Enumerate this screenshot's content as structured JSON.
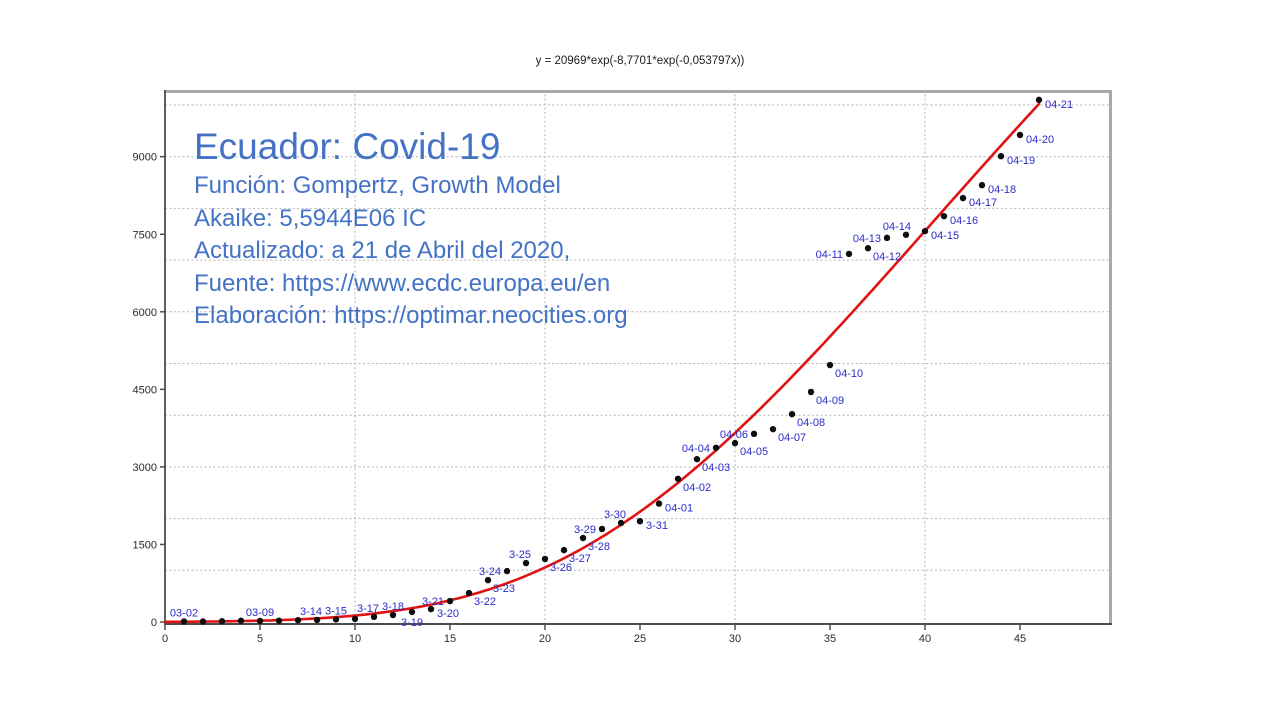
{
  "formula_title": "y = 20969*exp(-8,7701*exp(-0,053797x))",
  "annotation": {
    "title": "Ecuador: Covid-19",
    "lines": [
      "Función: Gompertz, Growth Model",
      "Akaike: 5,5944E06 IC",
      "Actualizado: a 21 de Abril del 2020,",
      "Fuente: https://www.ecdc.europa.eu/en",
      "Elaboración: https://optimar.neocities.org"
    ]
  },
  "colors": {
    "annotation_blue": "#4472C4",
    "point_label_blue": "#2B2BC8",
    "curve_red": "#E11212",
    "point_black": "#0d0d0d",
    "grid_gray": "#b4b4b4",
    "axis_dark": "#4d4d4d",
    "frame_gray": "#a8a8a8",
    "tick_text": "#2b2b2b"
  },
  "chart_data": {
    "type": "scatter",
    "title": "y = 20969*exp(-8,7701*exp(-0,053797x))",
    "xlabel": "",
    "ylabel": "",
    "xlim": [
      0,
      49.7
    ],
    "ylim": [
      0,
      10290
    ],
    "x_axis": {
      "ticks": [
        0,
        5,
        10,
        15,
        20,
        25,
        30,
        35,
        40,
        45
      ],
      "gridlines": [
        10,
        20,
        30,
        40
      ]
    },
    "y_axis": {
      "ticks": [
        0,
        1500,
        3000,
        4500,
        6000,
        7500,
        9000
      ],
      "gridlines": [
        1000,
        2000,
        3000,
        4000,
        5000,
        6000,
        7000,
        8000,
        9000,
        10000
      ]
    },
    "grid": "dashed",
    "legend": "none",
    "model_curve": {
      "name": "gompertz-fit",
      "formula": "y = 20969*exp(-8,7701*exp(-0,053797x))",
      "a": 20969,
      "b": 8.7701,
      "c": 0.053797,
      "x_start": 0,
      "x_end": 46.1
    },
    "points": [
      {
        "x": 1,
        "y": 10,
        "label": "03-02",
        "side": "above"
      },
      {
        "x": 2,
        "y": 10,
        "label": null,
        "side": null
      },
      {
        "x": 3,
        "y": 15,
        "label": null,
        "side": null
      },
      {
        "x": 4,
        "y": 25,
        "label": null,
        "side": null
      },
      {
        "x": 5,
        "y": 20,
        "label": "03-09",
        "side": "above"
      },
      {
        "x": 6,
        "y": 25,
        "label": null,
        "side": null
      },
      {
        "x": 7,
        "y": 35,
        "label": null,
        "side": null
      },
      {
        "x": 8,
        "y": 40,
        "label": "3-14",
        "side": "above-left"
      },
      {
        "x": 9,
        "y": 50,
        "label": "3-15",
        "side": "above"
      },
      {
        "x": 10,
        "y": 60,
        "label": null,
        "side": null
      },
      {
        "x": 11,
        "y": 100,
        "label": "3-17",
        "side": "above-left"
      },
      {
        "x": 12,
        "y": 135,
        "label": "3-18",
        "side": "above"
      },
      {
        "x": 13,
        "y": 195,
        "label": "3-19",
        "side": "below"
      },
      {
        "x": 14,
        "y": 250,
        "label": "3-20",
        "side": "right"
      },
      {
        "x": 15,
        "y": 405,
        "label": "3-21",
        "side": "left"
      },
      {
        "x": 16,
        "y": 560,
        "label": "3-22",
        "side": "below-right"
      },
      {
        "x": 17,
        "y": 810,
        "label": "3-23",
        "side": "below-right"
      },
      {
        "x": 18,
        "y": 985,
        "label": "3-24",
        "side": "left"
      },
      {
        "x": 19,
        "y": 1140,
        "label": "3-25",
        "side": "above-left"
      },
      {
        "x": 20,
        "y": 1220,
        "label": "3-26",
        "side": "below-right"
      },
      {
        "x": 21,
        "y": 1390,
        "label": "3-27",
        "side": "below-right"
      },
      {
        "x": 22,
        "y": 1625,
        "label": "3-28",
        "side": "below-right"
      },
      {
        "x": 23,
        "y": 1800,
        "label": "3-29",
        "side": "left"
      },
      {
        "x": 24,
        "y": 1915,
        "label": "3-30",
        "side": "above-left"
      },
      {
        "x": 25,
        "y": 1950,
        "label": "3-31",
        "side": "right"
      },
      {
        "x": 26,
        "y": 2290,
        "label": "04-01",
        "side": "right"
      },
      {
        "x": 27,
        "y": 2770,
        "label": "04-02",
        "side": "below-right"
      },
      {
        "x": 28,
        "y": 3150,
        "label": "04-03",
        "side": "below-right"
      },
      {
        "x": 29,
        "y": 3370,
        "label": "04-04",
        "side": "left"
      },
      {
        "x": 30,
        "y": 3460,
        "label": "04-05",
        "side": "below-right"
      },
      {
        "x": 31,
        "y": 3640,
        "label": "04-06",
        "side": "left"
      },
      {
        "x": 32,
        "y": 3730,
        "label": "04-07",
        "side": "below-right"
      },
      {
        "x": 33,
        "y": 4020,
        "label": "04-08",
        "side": "below-right"
      },
      {
        "x": 34,
        "y": 4450,
        "label": "04-09",
        "side": "below-right"
      },
      {
        "x": 35,
        "y": 4970,
        "label": "04-10",
        "side": "below-right"
      },
      {
        "x": 36,
        "y": 7120,
        "label": "04-11",
        "side": "left"
      },
      {
        "x": 37,
        "y": 7230,
        "label": "04-12",
        "side": "below-right"
      },
      {
        "x": 38,
        "y": 7430,
        "label": "04-13",
        "side": "left"
      },
      {
        "x": 39,
        "y": 7490,
        "label": "04-14",
        "side": "above-left"
      },
      {
        "x": 40,
        "y": 7560,
        "label": "04-15",
        "side": "right"
      },
      {
        "x": 41,
        "y": 7850,
        "label": "04-16",
        "side": "right"
      },
      {
        "x": 42,
        "y": 8200,
        "label": "04-17",
        "side": "right"
      },
      {
        "x": 43,
        "y": 8450,
        "label": "04-18",
        "side": "right"
      },
      {
        "x": 44,
        "y": 9010,
        "label": "04-19",
        "side": "right"
      },
      {
        "x": 45,
        "y": 9420,
        "label": "04-20",
        "side": "right"
      },
      {
        "x": 46,
        "y": 10100,
        "label": "04-21",
        "side": "right"
      }
    ]
  }
}
